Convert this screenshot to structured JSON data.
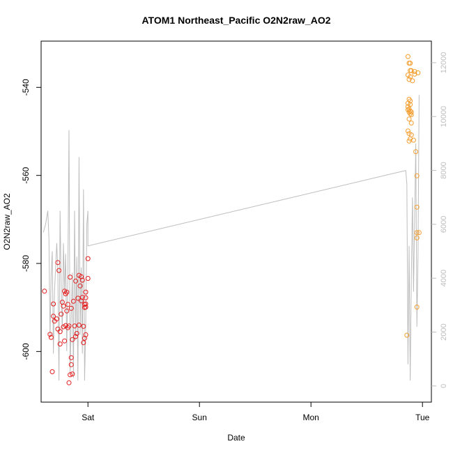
{
  "chart_data": {
    "type": "scatter",
    "title": "ATOM1 Northeast_Pacific O2N2raw_AO2",
    "xlabel": "Date",
    "ylabel": "O2N2raw_AO2",
    "x_ticks": [
      {
        "label": "Sat",
        "day": 1
      },
      {
        "label": "Sun",
        "day": 2
      },
      {
        "label": "Mon",
        "day": 3
      },
      {
        "label": "Tue",
        "day": 4
      }
    ],
    "xlim": [
      0.58,
      4.08
    ],
    "ylim": [
      -611.5,
      -529.5
    ],
    "y_ticks": [
      -600,
      -580,
      -560,
      -540
    ],
    "y2lim": [
      -600,
      12800
    ],
    "y2_ticks": [
      0,
      2000,
      4000,
      6000,
      8000,
      10000,
      12000
    ],
    "grid": false,
    "colors": {
      "series_1": "#e41a1c",
      "series_2": "#f39c2b",
      "line": "#bdbdbd",
      "right_axis": "#bdbdbd"
    },
    "series": [
      {
        "color": "#e41a1c",
        "marker": "open-circle",
        "points": [
          [
            0.61,
            -586.3
          ],
          [
            0.66,
            -596.1
          ],
          [
            0.67,
            -596.8
          ],
          [
            0.68,
            -604.6
          ],
          [
            0.69,
            -592.0
          ],
          [
            0.69,
            -589.2
          ],
          [
            0.7,
            -593.1
          ],
          [
            0.72,
            -592.6
          ],
          [
            0.73,
            -594.9
          ],
          [
            0.73,
            -579.8
          ],
          [
            0.74,
            -581.6
          ],
          [
            0.75,
            -595.5
          ],
          [
            0.75,
            -598.3
          ],
          [
            0.76,
            -591.5
          ],
          [
            0.77,
            -588.8
          ],
          [
            0.78,
            -594.4
          ],
          [
            0.78,
            -589.7
          ],
          [
            0.79,
            -586.3
          ],
          [
            0.79,
            -597.6
          ],
          [
            0.8,
            -594.1
          ],
          [
            0.8,
            -586.9
          ],
          [
            0.81,
            -590.8
          ],
          [
            0.81,
            -586.5
          ],
          [
            0.82,
            -589.3
          ],
          [
            0.82,
            -594.6
          ],
          [
            0.83,
            -594.2
          ],
          [
            0.83,
            -607.1
          ],
          [
            0.84,
            -583.1
          ],
          [
            0.84,
            -605.3
          ],
          [
            0.85,
            -590.2
          ],
          [
            0.85,
            -603.0
          ],
          [
            0.85,
            -601.4
          ],
          [
            0.86,
            -605.1
          ],
          [
            0.86,
            -597.3
          ],
          [
            0.87,
            -588.6
          ],
          [
            0.88,
            -594.2
          ],
          [
            0.89,
            -596.6
          ],
          [
            0.89,
            -584.0
          ],
          [
            0.9,
            -595.9
          ],
          [
            0.91,
            -587.9
          ],
          [
            0.92,
            -582.7
          ],
          [
            0.92,
            -594.0
          ],
          [
            0.93,
            -585.1
          ],
          [
            0.94,
            -583.0
          ],
          [
            0.94,
            -588.5
          ],
          [
            0.95,
            -583.8
          ],
          [
            0.95,
            -587.7
          ],
          [
            0.96,
            -598.0
          ],
          [
            0.96,
            -594.3
          ],
          [
            0.97,
            -597.0
          ],
          [
            0.97,
            -589.3
          ],
          [
            0.97,
            -590.0
          ],
          [
            0.98,
            -589.2
          ],
          [
            0.98,
            -586.5
          ],
          [
            0.98,
            -587.8
          ],
          [
            0.98,
            -596.2
          ],
          [
            0.98,
            -589.9
          ],
          [
            1.0,
            -578.9
          ],
          [
            1.0,
            -583.4
          ]
        ]
      },
      {
        "color": "#f39c2b",
        "marker": "open-circle",
        "points": [
          [
            3.86,
            -596.3
          ],
          [
            3.87,
            -533.0
          ],
          [
            3.87,
            -537.2
          ],
          [
            3.87,
            -543.6
          ],
          [
            3.87,
            -544.4
          ],
          [
            3.87,
            -545.1
          ],
          [
            3.87,
            -549.9
          ],
          [
            3.88,
            -534.5
          ],
          [
            3.88,
            -538.2
          ],
          [
            3.88,
            -542.7
          ],
          [
            3.88,
            -544.9
          ],
          [
            3.88,
            -545.6
          ],
          [
            3.88,
            -547.2
          ],
          [
            3.88,
            -550.5
          ],
          [
            3.88,
            -552.2
          ],
          [
            3.89,
            -534.5
          ],
          [
            3.89,
            -536.2
          ],
          [
            3.89,
            -537.6
          ],
          [
            3.89,
            -543.1
          ],
          [
            3.89,
            -543.9
          ],
          [
            3.89,
            -545.4
          ],
          [
            3.89,
            -546.0
          ],
          [
            3.89,
            -551.7
          ],
          [
            3.9,
            -536.2
          ],
          [
            3.9,
            -545.6
          ],
          [
            3.9,
            -546.2
          ],
          [
            3.9,
            -548.1
          ],
          [
            3.9,
            -550.8
          ],
          [
            3.91,
            -538.5
          ],
          [
            3.92,
            -552.0
          ],
          [
            3.93,
            -537.0
          ],
          [
            3.94,
            -554.6
          ],
          [
            3.95,
            -560.1
          ],
          [
            3.95,
            -567.2
          ],
          [
            3.95,
            -573.0
          ],
          [
            3.95,
            -574.2
          ],
          [
            3.95,
            -589.9
          ],
          [
            3.96,
            -536.7
          ],
          [
            3.97,
            -573.0
          ],
          [
            3.93,
            -536.4
          ]
        ]
      }
    ],
    "line_series": {
      "color": "#bdbdbd",
      "axis": "right",
      "points": [
        [
          0.6,
          5700
        ],
        [
          0.62,
          6000
        ],
        [
          0.64,
          6500
        ],
        [
          0.65,
          5500
        ],
        [
          0.66,
          1800
        ],
        [
          0.67,
          4100
        ],
        [
          0.68,
          5000
        ],
        [
          0.69,
          1200
        ],
        [
          0.7,
          3500
        ],
        [
          0.72,
          5300
        ],
        [
          0.73,
          4300
        ],
        [
          0.74,
          200
        ],
        [
          0.75,
          6500
        ],
        [
          0.76,
          3700
        ],
        [
          0.77,
          2000
        ],
        [
          0.78,
          5300
        ],
        [
          0.79,
          3500
        ],
        [
          0.8,
          4900
        ],
        [
          0.81,
          1300
        ],
        [
          0.82,
          4300
        ],
        [
          0.83,
          9500
        ],
        [
          0.84,
          500
        ],
        [
          0.85,
          2500
        ],
        [
          0.86,
          4200
        ],
        [
          0.87,
          300
        ],
        [
          0.88,
          6500
        ],
        [
          0.89,
          1700
        ],
        [
          0.9,
          4800
        ],
        [
          0.91,
          200
        ],
        [
          0.92,
          8500
        ],
        [
          0.93,
          1900
        ],
        [
          0.94,
          4400
        ],
        [
          0.95,
          1200
        ],
        [
          0.96,
          7300
        ],
        [
          0.97,
          200
        ],
        [
          0.98,
          2200
        ],
        [
          0.99,
          6000
        ],
        [
          1.0,
          6500
        ],
        [
          1.0,
          5200
        ],
        [
          3.85,
          8000
        ],
        [
          3.86,
          7500
        ],
        [
          3.87,
          800
        ],
        [
          3.88,
          5200
        ],
        [
          3.89,
          200
        ],
        [
          3.9,
          4000
        ],
        [
          3.91,
          7000
        ],
        [
          3.92,
          3500
        ],
        [
          3.94,
          9000
        ],
        [
          3.95,
          2200
        ],
        [
          3.96,
          4800
        ],
        [
          3.97,
          10800
        ]
      ]
    }
  }
}
